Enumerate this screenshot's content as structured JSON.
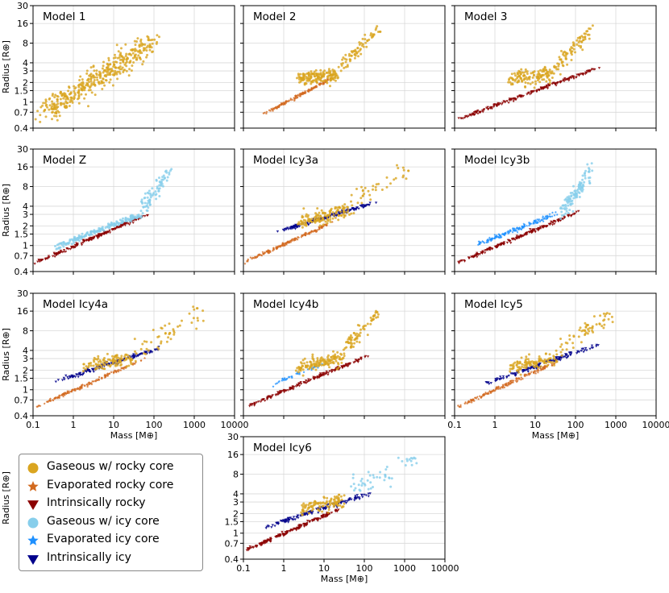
{
  "chart_data": {
    "type": "scatter",
    "xlabel": "Mass [M⊕]",
    "ylabel": "Radius [R⊕]",
    "xscale": "log",
    "yscale": "log",
    "xlim": [
      0.1,
      10000
    ],
    "ylim": [
      0.4,
      30
    ],
    "xticks": [
      0.1,
      1,
      10,
      100,
      1000,
      10000
    ],
    "xtick_labels": [
      "0.1",
      "1",
      "10",
      "100",
      "1000",
      "10000"
    ],
    "yticks": [
      0.4,
      0.7,
      1,
      1.5,
      2,
      3,
      4,
      8,
      16,
      30
    ],
    "ytick_labels": [
      "0.4",
      "0.7",
      "1",
      "1.5",
      "2",
      "3",
      "4",
      "8",
      "16",
      "30"
    ],
    "grid": true,
    "legend_position": "bottom-left",
    "categories": [
      {
        "key": "gas_rocky",
        "name": "Gaseous w/ rocky core",
        "color": "#DAA520",
        "marker": "circle"
      },
      {
        "key": "evap_rocky",
        "name": "Evaporated rocky core",
        "color": "#D2691E",
        "marker": "star"
      },
      {
        "key": "intr_rocky",
        "name": "Intrinsically rocky",
        "color": "#8B0000",
        "marker": "triangle-down"
      },
      {
        "key": "gas_icy",
        "name": "Gaseous w/ icy core",
        "color": "#87CEEB",
        "marker": "circle"
      },
      {
        "key": "evap_icy",
        "name": "Evaporated icy core",
        "color": "#1E90FF",
        "marker": "star"
      },
      {
        "key": "intr_icy",
        "name": "Intrinsically icy",
        "color": "#00008B",
        "marker": "triangle-down"
      }
    ],
    "panels": [
      {
        "title": "Model 1",
        "series": [
          {
            "category": "gas_rocky",
            "n": 420,
            "mass_range": [
              0.1,
              150
            ],
            "radius_at_range": [
              0.55,
              9.5
            ],
            "scatter": 0.45
          }
        ]
      },
      {
        "title": "Model 2",
        "series": [
          {
            "category": "evap_rocky",
            "n": 160,
            "mass_range": [
              0.3,
              20
            ],
            "radius_at_range": [
              0.65,
              2.5
            ],
            "scatter": 0.05
          },
          {
            "category": "gas_rocky",
            "n": 160,
            "mass_range": [
              2,
              25
            ],
            "radius_at_range": [
              2.3,
              2.6
            ],
            "scatter": 0.25
          },
          {
            "category": "gas_rocky",
            "n": 70,
            "mass_range": [
              20,
              300
            ],
            "radius_at_range": [
              3,
              15
            ],
            "scatter": 0.25
          }
        ]
      },
      {
        "title": "Model 3",
        "series": [
          {
            "category": "intr_rocky",
            "n": 190,
            "mass_range": [
              0.1,
              500
            ],
            "radius_at_range": [
              0.52,
              3.6
            ],
            "scatter": 0.06
          },
          {
            "category": "gas_rocky",
            "n": 130,
            "mass_range": [
              2,
              30
            ],
            "radius_at_range": [
              2.3,
              2.6
            ],
            "scatter": 0.25
          },
          {
            "category": "gas_rocky",
            "n": 80,
            "mass_range": [
              25,
              300
            ],
            "radius_at_range": [
              3,
              14
            ],
            "scatter": 0.3
          }
        ]
      },
      {
        "title": "Model Z",
        "series": [
          {
            "category": "intr_rocky",
            "n": 180,
            "mass_range": [
              0.1,
              100
            ],
            "radius_at_range": [
              0.52,
              3.3
            ],
            "scatter": 0.06
          },
          {
            "category": "gas_icy",
            "n": 180,
            "mass_range": [
              0.3,
              60
            ],
            "radius_at_range": [
              0.9,
              3.2
            ],
            "scatter": 0.1
          },
          {
            "category": "gas_icy",
            "n": 80,
            "mass_range": [
              40,
              300
            ],
            "radius_at_range": [
              3,
              16
            ],
            "scatter": 0.35
          }
        ]
      },
      {
        "title": "Model Icy3a",
        "series": [
          {
            "category": "evap_rocky",
            "n": 170,
            "mass_range": [
              0.1,
              20
            ],
            "radius_at_range": [
              0.55,
              2.4
            ],
            "scatter": 0.06
          },
          {
            "category": "intr_icy",
            "n": 160,
            "mass_range": [
              0.6,
              200
            ],
            "radius_at_range": [
              1.6,
              4.6
            ],
            "scatter": 0.06
          },
          {
            "category": "gas_rocky",
            "n": 140,
            "mass_range": [
              2,
              50
            ],
            "radius_at_range": [
              2.2,
              3.5
            ],
            "scatter": 0.25
          },
          {
            "category": "gas_rocky",
            "n": 40,
            "mass_range": [
              30,
              1500
            ],
            "radius_at_range": [
              4,
              15
            ],
            "scatter": 0.35
          }
        ]
      },
      {
        "title": "Model Icy3b",
        "series": [
          {
            "category": "intr_rocky",
            "n": 180,
            "mass_range": [
              0.1,
              150
            ],
            "radius_at_range": [
              0.52,
              3.5
            ],
            "scatter": 0.06
          },
          {
            "category": "evap_icy",
            "n": 160,
            "mass_range": [
              0.3,
              40
            ],
            "radius_at_range": [
              1.0,
              3.2
            ],
            "scatter": 0.08
          },
          {
            "category": "gas_icy",
            "n": 110,
            "mass_range": [
              40,
              300
            ],
            "radius_at_range": [
              3,
              16
            ],
            "scatter": 0.35
          }
        ]
      },
      {
        "title": "Model Icy4a",
        "series": [
          {
            "category": "evap_rocky",
            "n": 160,
            "mass_range": [
              0.1,
              60
            ],
            "radius_at_range": [
              0.52,
              3.0
            ],
            "scatter": 0.06
          },
          {
            "category": "intr_icy",
            "n": 140,
            "mass_range": [
              0.3,
              200
            ],
            "radius_at_range": [
              1.3,
              4.6
            ],
            "scatter": 0.07
          },
          {
            "category": "gas_rocky",
            "n": 110,
            "mass_range": [
              1.5,
              40
            ],
            "radius_at_range": [
              2.3,
              3.2
            ],
            "scatter": 0.25
          },
          {
            "category": "gas_rocky",
            "n": 50,
            "mass_range": [
              30,
              2000
            ],
            "radius_at_range": [
              4,
              15
            ],
            "scatter": 0.35
          }
        ]
      },
      {
        "title": "Model Icy4b",
        "series": [
          {
            "category": "intr_rocky",
            "n": 170,
            "mass_range": [
              0.1,
              150
            ],
            "radius_at_range": [
              0.52,
              3.5
            ],
            "scatter": 0.06
          },
          {
            "category": "evap_icy",
            "n": 40,
            "mass_range": [
              0.5,
              10
            ],
            "radius_at_range": [
              1.2,
              2.5
            ],
            "scatter": 0.06
          },
          {
            "category": "gas_rocky",
            "n": 140,
            "mass_range": [
              2,
              40
            ],
            "radius_at_range": [
              2.2,
              3.2
            ],
            "scatter": 0.25
          },
          {
            "category": "gas_rocky",
            "n": 70,
            "mass_range": [
              30,
              250
            ],
            "radius_at_range": [
              4,
              16
            ],
            "scatter": 0.3
          }
        ]
      },
      {
        "title": "Model Icy5",
        "series": [
          {
            "category": "evap_rocky",
            "n": 170,
            "mass_range": [
              0.1,
              40
            ],
            "radius_at_range": [
              0.52,
              2.8
            ],
            "scatter": 0.06
          },
          {
            "category": "intr_icy",
            "n": 140,
            "mass_range": [
              0.5,
              400
            ],
            "radius_at_range": [
              1.2,
              5.0
            ],
            "scatter": 0.07
          },
          {
            "category": "gas_rocky",
            "n": 110,
            "mass_range": [
              2,
              40
            ],
            "radius_at_range": [
              2.3,
              3.0
            ],
            "scatter": 0.25
          },
          {
            "category": "gas_rocky",
            "n": 60,
            "mass_range": [
              30,
              1000
            ],
            "radius_at_range": [
              4,
              15
            ],
            "scatter": 0.35
          }
        ]
      },
      {
        "title": "Model Icy6",
        "series": [
          {
            "category": "intr_rocky",
            "n": 170,
            "mass_range": [
              0.1,
              30
            ],
            "radius_at_range": [
              0.52,
              2.5
            ],
            "scatter": 0.06
          },
          {
            "category": "intr_icy",
            "n": 140,
            "mass_range": [
              0.3,
              200
            ],
            "radius_at_range": [
              1.2,
              4.4
            ],
            "scatter": 0.07
          },
          {
            "category": "gas_rocky",
            "n": 110,
            "mass_range": [
              2,
              40
            ],
            "radius_at_range": [
              2.3,
              3.3
            ],
            "scatter": 0.25
          },
          {
            "category": "gas_icy",
            "n": 50,
            "mass_range": [
              30,
              3000
            ],
            "radius_at_range": [
              4,
              17
            ],
            "scatter": 0.35
          }
        ]
      }
    ]
  }
}
